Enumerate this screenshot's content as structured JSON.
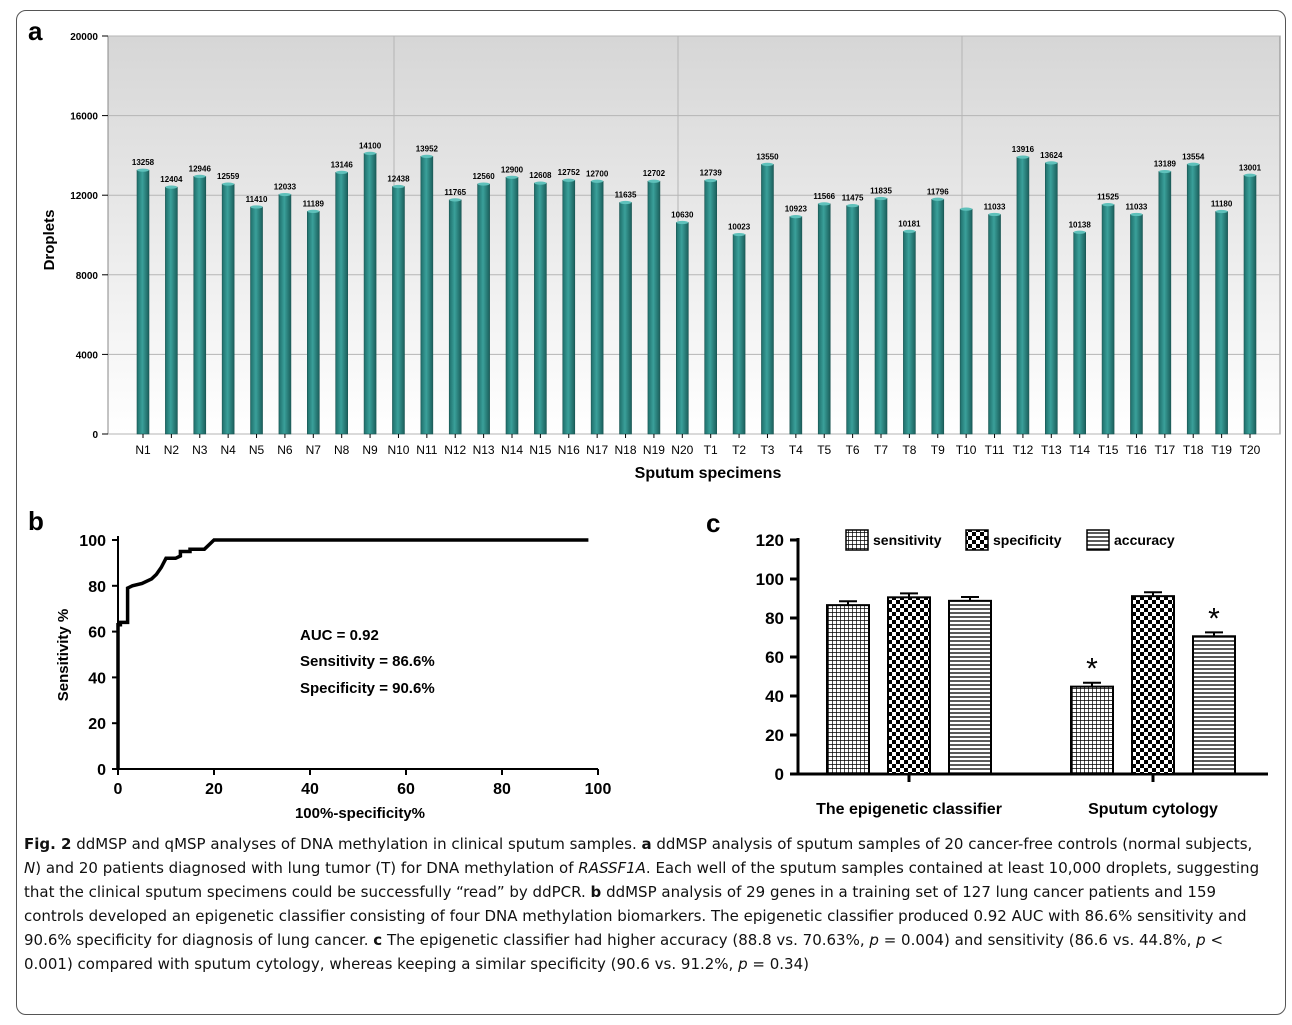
{
  "panels": {
    "a": {
      "letter": "a",
      "chart_data": {
        "type": "bar",
        "xlabel": "Sputum specimens",
        "ylabel": "Droplets",
        "ylim": [
          0,
          20000
        ],
        "yticks": [
          "0",
          "4000",
          "8000",
          "12000",
          "16000",
          "20000"
        ],
        "grid": true,
        "categories": [
          "N1",
          "N2",
          "N3",
          "N4",
          "N5",
          "N6",
          "N7",
          "N8",
          "N9",
          "N10",
          "N11",
          "N12",
          "N13",
          "N14",
          "N15",
          "N16",
          "N17",
          "N18",
          "N19",
          "N20",
          "T1",
          "T2",
          "T3",
          "T4",
          "T5",
          "T6",
          "T7",
          "T8",
          "T9",
          "T10",
          "T11",
          "T12",
          "T13",
          "T14",
          "T15",
          "T16",
          "T17",
          "T18",
          "T19",
          "T20"
        ],
        "values": [
          13258,
          12404,
          12946,
          12559,
          11410,
          12033,
          11189,
          13146,
          14100,
          12438,
          13952,
          11765,
          12560,
          12900,
          12608,
          12752,
          12700,
          11635,
          12702,
          10630,
          12739,
          10023,
          13550,
          10923,
          11566,
          11475,
          11835,
          10181,
          11796,
          11300,
          11033,
          13916,
          13624,
          10138,
          11525,
          11033,
          13189,
          13554,
          11180,
          13001
        ],
        "data_labels": [
          "13258",
          "12404",
          "12946",
          "12559",
          "11410",
          "12033",
          "11189",
          "13146",
          "14100",
          "12438",
          "13952",
          "11765",
          "12560",
          "12900",
          "12608",
          "12752",
          "12700",
          "11635",
          "12702",
          "10630",
          "12739",
          "10023",
          "13550",
          "10923",
          "11566",
          "11475",
          "11835",
          "10181",
          "11796",
          "",
          "11033",
          "13916",
          "13624",
          "10138",
          "11525",
          "11033",
          "13189",
          "13554",
          "11180",
          "13001"
        ],
        "bar_color": "#2e8b88"
      }
    },
    "b": {
      "letter": "b",
      "chart_data": {
        "type": "line",
        "xlabel": "100%-specificity%",
        "ylabel": "Sensitivity %",
        "xlim": [
          0,
          100
        ],
        "ylim": [
          0,
          100
        ],
        "xticks": [
          "0",
          "20",
          "40",
          "60",
          "80",
          "100"
        ],
        "yticks": [
          "0",
          "20",
          "40",
          "60",
          "80",
          "100"
        ],
        "x": [
          0,
          0,
          0.5,
          0.5,
          2,
          2,
          3,
          5,
          7,
          8,
          9,
          10,
          12,
          13,
          13,
          14,
          15,
          15,
          18,
          19,
          20,
          98
        ],
        "y": [
          0,
          63,
          63,
          64,
          64,
          79,
          80,
          81,
          83,
          85,
          88,
          92,
          92,
          93,
          95,
          95,
          95,
          96,
          96,
          98,
          100,
          100
        ],
        "annotations": [
          "AUC = 0.92",
          "Sensitivity = 86.6%",
          "Specificity = 90.6%"
        ]
      }
    },
    "c": {
      "letter": "c",
      "chart_data": {
        "type": "bar",
        "ylim": [
          0,
          120
        ],
        "yticks": [
          "0",
          "20",
          "40",
          "60",
          "80",
          "100",
          "120"
        ],
        "categories": [
          "The epigenetic classifier",
          "Sputum cytology"
        ],
        "series": [
          {
            "name": "sensitivity",
            "values": [
              86.6,
              44.8
            ],
            "errors": [
              2,
              2
            ],
            "pattern": "grid"
          },
          {
            "name": "specificity",
            "values": [
              90.6,
              91.2
            ],
            "errors": [
              2,
              2
            ],
            "pattern": "checker"
          },
          {
            "name": "accuracy",
            "values": [
              88.8,
              70.63
            ],
            "errors": [
              2,
              2
            ],
            "pattern": "hlines"
          }
        ],
        "significance": [
          {
            "category": 1,
            "series": 0,
            "mark": "*"
          },
          {
            "category": 1,
            "series": 2,
            "mark": "*"
          }
        ],
        "legend_position": "top"
      }
    }
  },
  "caption": {
    "fig_label": "Fig. 2",
    "title": " ddMSP and qMSP analyses of DNA methylation in clinical sputum samples. ",
    "a_label": "a",
    "a_text1": " ddMSP analysis of sputum samples of 20 cancer-free controls (normal subjects, ",
    "a_n": "N",
    "a_text2": ") and 20 patients diagnosed with lung tumor (T) for DNA methylation of ",
    "a_gene": "RASSF1A",
    "a_text3": ". Each well of the sputum samples contained at least 10,000 droplets, suggesting that the clinical sputum specimens could be successfully “read” by ddPCR. ",
    "b_label": "b",
    "b_text": " ddMSP analysis of 29 genes in a training set of 127 lung cancer patients and 159 controls developed an epigenetic classifier consisting of four DNA methylation biomarkers. The epigenetic classifier produced 0.92 AUC with 86.6% sensitivity and 90.6% specificity for diagnosis of lung cancer. ",
    "c_label": "c",
    "c_text1": " The epigenetic classifier had higher accuracy (88.8 vs. 70.63%, ",
    "p1": "p",
    "c_text2": " = 0.004) and sensitivity (86.6 vs. 44.8%, ",
    "p2": "p",
    "c_text3": " < 0.001) compared with sputum cytology, whereas keeping a similar specificity (90.6 vs. 91.2%, ",
    "p3": "p",
    "c_text4": " = 0.34)"
  }
}
